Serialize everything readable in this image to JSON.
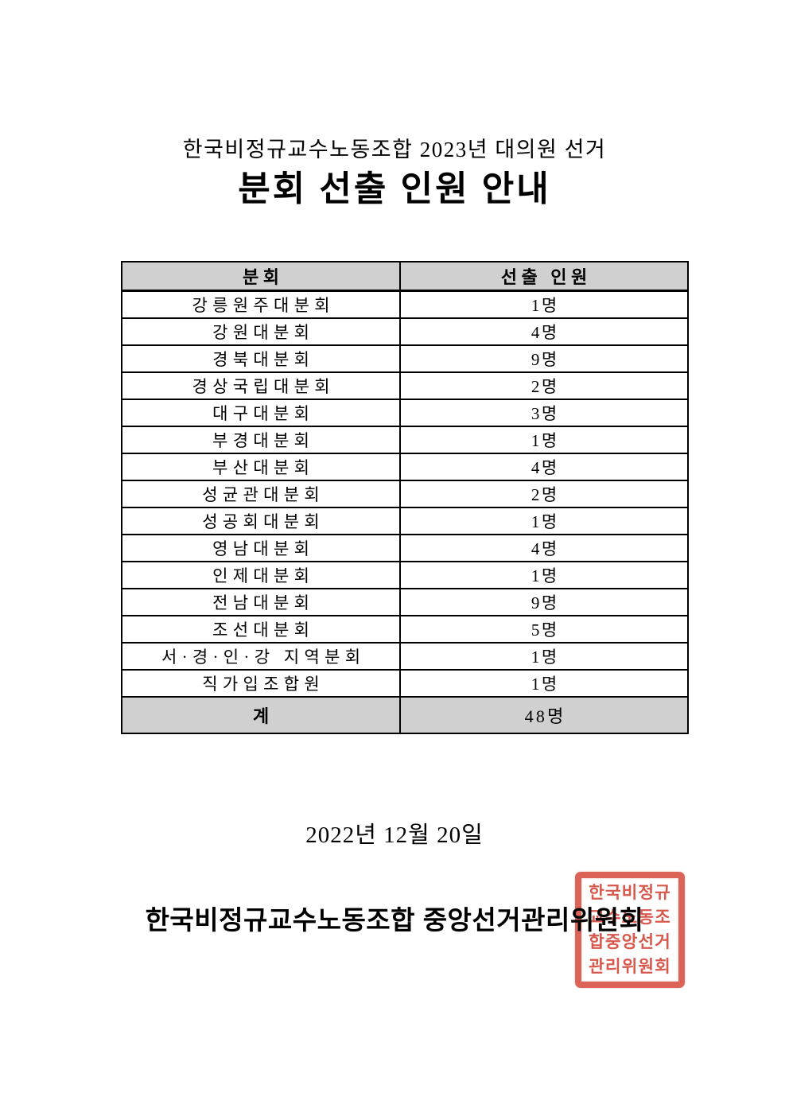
{
  "header": {
    "title_line1": "한국비정규교수노동조합 2023년 대의원 선거",
    "title_line2": "분회 선출 인원 안내"
  },
  "table": {
    "headers": [
      "분회",
      "선출 인원"
    ],
    "rows": [
      [
        "강릉원주대분회",
        "1명"
      ],
      [
        "강원대분회",
        "4명"
      ],
      [
        "경북대분회",
        "9명"
      ],
      [
        "경상국립대분회",
        "2명"
      ],
      [
        "대구대분회",
        "3명"
      ],
      [
        "부경대분회",
        "1명"
      ],
      [
        "부산대분회",
        "4명"
      ],
      [
        "성균관대분회",
        "2명"
      ],
      [
        "성공회대분회",
        "1명"
      ],
      [
        "영남대분회",
        "4명"
      ],
      [
        "인제대분회",
        "1명"
      ],
      [
        "전남대분회",
        "9명"
      ],
      [
        "조선대분회",
        "5명"
      ],
      [
        "서·경·인·강 지역분회",
        "1명"
      ],
      [
        "직가입조합원",
        "1명"
      ]
    ],
    "total_row": {
      "label": "계",
      "value": "48명"
    }
  },
  "footer": {
    "date": "2022년 12월 20일",
    "organization": "한국비정규교수노동조합 중앙선거관리위원회"
  },
  "seal": {
    "text": "한국비정규교수노동조합중앙선거관리위원회",
    "rows": [
      "한국비정규",
      "교수노동조",
      "합중앙선거",
      "관리위원회"
    ],
    "color": "#d6483a"
  },
  "colors": {
    "page_bg": "#ffffff",
    "text": "#000000",
    "table_border": "#000000",
    "header_row_bg": "#d0d0d0",
    "seal_red": "#d6483a"
  }
}
